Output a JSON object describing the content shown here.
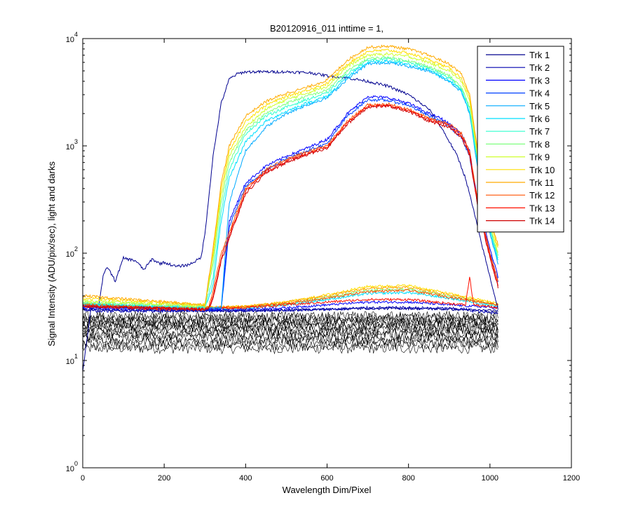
{
  "chart_data": {
    "type": "line",
    "title": "B20120916_011 inttime = 1,",
    "xlabel": "Wavelength Dim/Pixel",
    "ylabel": "Signal Intensity (ADU/pix/sec), light and darks",
    "xlim": [
      0,
      1200
    ],
    "ylim": [
      1,
      10000
    ],
    "yscale": "log",
    "grid": false,
    "legend_position": "top-right",
    "x_ticks": [
      0,
      200,
      400,
      600,
      800,
      1000,
      1200
    ],
    "x_tick_labels": [
      "0",
      "200",
      "400",
      "600",
      "800",
      "1000",
      "1200"
    ],
    "y_ticks": [
      1,
      10,
      100,
      1000,
      10000
    ],
    "y_tick_base": "10",
    "y_tick_exponents": [
      "0",
      "1",
      "2",
      "3",
      "4"
    ],
    "series": [
      {
        "name": "Trk 1",
        "color": "#00008F",
        "x": [
          0,
          20,
          40,
          50,
          60,
          80,
          100,
          130,
          150,
          170,
          190,
          200,
          230,
          260,
          290,
          300,
          320,
          340,
          360,
          380,
          400,
          500,
          560,
          600,
          650,
          700,
          750,
          800,
          850,
          880,
          900,
          920,
          940,
          960,
          980,
          1000,
          1020
        ],
        "y": [
          8,
          30,
          34,
          60,
          75,
          55,
          90,
          85,
          70,
          88,
          80,
          82,
          75,
          78,
          90,
          150,
          800,
          2500,
          4200,
          4700,
          4900,
          4900,
          4800,
          4500,
          4300,
          4000,
          3600,
          3000,
          2200,
          1500,
          1100,
          800,
          500,
          250,
          120,
          60,
          30
        ]
      },
      {
        "name": "Trk 2",
        "color": "#0000AF",
        "x": [
          0,
          20,
          100,
          300,
          500,
          600,
          700,
          800,
          900,
          940,
          960,
          1000,
          1020
        ],
        "y": [
          30,
          29,
          29,
          29,
          29.5,
          30,
          31,
          31,
          30.5,
          30,
          29,
          28,
          28
        ]
      },
      {
        "name": "Trk 3",
        "color": "#0000FF",
        "x": [
          0,
          300,
          340,
          350,
          360,
          400,
          450,
          500,
          550,
          600,
          650,
          700,
          750,
          800,
          850,
          880,
          900,
          930,
          950,
          970,
          1000,
          1020
        ],
        "y": [
          32,
          30,
          30,
          80,
          200,
          450,
          650,
          800,
          950,
          1150,
          2000,
          2900,
          2800,
          2500,
          2000,
          1800,
          1600,
          1300,
          900,
          300,
          110,
          60
        ]
      },
      {
        "name": "Trk 4",
        "color": "#0040FF",
        "x": [
          0,
          300,
          340,
          350,
          360,
          400,
          450,
          500,
          550,
          600,
          650,
          700,
          750,
          800,
          850,
          880,
          900,
          930,
          950,
          970,
          1000,
          1020
        ],
        "y": [
          32,
          30,
          30,
          70,
          180,
          420,
          600,
          760,
          900,
          1050,
          1900,
          2700,
          2650,
          2400,
          1900,
          1700,
          1500,
          1200,
          800,
          280,
          100,
          55
        ]
      },
      {
        "name": "Trk 5",
        "color": "#00AAFF",
        "x": [
          0,
          300,
          340,
          350,
          360,
          400,
          450,
          500,
          550,
          600,
          650,
          700,
          750,
          800,
          850,
          900,
          930,
          950,
          970,
          1000,
          1020
        ],
        "y": [
          33,
          31,
          31,
          100,
          300,
          900,
          1500,
          2000,
          2400,
          2800,
          4200,
          5800,
          6000,
          5500,
          5000,
          4000,
          3200,
          2000,
          600,
          150,
          80
        ]
      },
      {
        "name": "Trk 6",
        "color": "#00DFFF",
        "x": [
          0,
          300,
          320,
          340,
          360,
          400,
          450,
          500,
          550,
          600,
          650,
          700,
          750,
          800,
          850,
          900,
          930,
          950,
          970,
          1000,
          1020
        ],
        "y": [
          33,
          31,
          50,
          200,
          500,
          1100,
          1700,
          2100,
          2500,
          2900,
          4400,
          6000,
          6200,
          5700,
          5100,
          4100,
          3300,
          2100,
          650,
          160,
          85
        ]
      },
      {
        "name": "Trk 7",
        "color": "#30FFCF",
        "x": [
          0,
          300,
          320,
          340,
          360,
          400,
          450,
          500,
          550,
          600,
          650,
          700,
          750,
          800,
          850,
          900,
          930,
          950,
          970,
          1000,
          1020
        ],
        "y": [
          34,
          31,
          60,
          250,
          600,
          1300,
          1900,
          2300,
          2700,
          3100,
          4700,
          6300,
          6500,
          6000,
          5300,
          4300,
          3400,
          2200,
          700,
          170,
          90
        ]
      },
      {
        "name": "Trk 8",
        "color": "#80FF80",
        "x": [
          0,
          300,
          320,
          340,
          360,
          400,
          450,
          500,
          550,
          600,
          650,
          700,
          750,
          800,
          850,
          900,
          930,
          950,
          970,
          1000,
          1020
        ],
        "y": [
          35,
          32,
          80,
          300,
          700,
          1400,
          2000,
          2500,
          2900,
          3300,
          5000,
          6500,
          6700,
          6200,
          5500,
          4500,
          3500,
          2300,
          750,
          180,
          95
        ]
      },
      {
        "name": "Trk 9",
        "color": "#CFFF30",
        "x": [
          0,
          300,
          320,
          340,
          360,
          400,
          450,
          500,
          550,
          600,
          650,
          700,
          750,
          800,
          850,
          900,
          930,
          950,
          970,
          1000,
          1020
        ],
        "y": [
          36,
          32,
          90,
          350,
          800,
          1500,
          2200,
          2700,
          3100,
          3600,
          5500,
          7000,
          7200,
          6800,
          6000,
          5000,
          4000,
          2600,
          800,
          190,
          100
        ]
      },
      {
        "name": "Trk 10",
        "color": "#FFDF00",
        "x": [
          0,
          300,
          320,
          340,
          360,
          400,
          450,
          500,
          550,
          600,
          650,
          700,
          750,
          800,
          850,
          900,
          930,
          950,
          970,
          1000,
          1020
        ],
        "y": [
          38,
          33,
          100,
          400,
          900,
          1700,
          2400,
          2900,
          3300,
          3800,
          5800,
          7600,
          7800,
          7300,
          6400,
          5300,
          4300,
          2800,
          850,
          200,
          110
        ]
      },
      {
        "name": "Trk 11",
        "color": "#FFAA00",
        "x": [
          0,
          300,
          320,
          340,
          360,
          400,
          450,
          500,
          550,
          600,
          650,
          700,
          750,
          800,
          850,
          900,
          930,
          950,
          970,
          1000,
          1020
        ],
        "y": [
          40,
          33,
          110,
          450,
          1000,
          1900,
          2600,
          3100,
          3500,
          4100,
          6300,
          8300,
          8500,
          8000,
          7000,
          5800,
          4700,
          3000,
          900,
          210,
          120
        ]
      },
      {
        "name": "Trk 12",
        "color": "#FF5000",
        "x": [
          0,
          300,
          310,
          320,
          340,
          400,
          450,
          500,
          550,
          600,
          650,
          700,
          750,
          800,
          850,
          900,
          930,
          950,
          970,
          1000,
          1020
        ],
        "y": [
          33,
          30,
          32,
          45,
          100,
          400,
          600,
          750,
          880,
          1000,
          1700,
          2400,
          2450,
          2200,
          1800,
          1600,
          1300,
          900,
          300,
          100,
          55
        ]
      },
      {
        "name": "Trk 13",
        "color": "#FF1000",
        "x": [
          0,
          300,
          310,
          320,
          340,
          400,
          450,
          500,
          550,
          600,
          650,
          700,
          750,
          800,
          850,
          900,
          930,
          950,
          970,
          1000,
          1020
        ],
        "y": [
          32,
          30,
          31,
          40,
          90,
          380,
          580,
          720,
          850,
          970,
          1650,
          2350,
          2400,
          2150,
          1750,
          1550,
          1250,
          850,
          280,
          95,
          50
        ]
      },
      {
        "name": "Trk 14",
        "color": "#CF0000",
        "x": [
          0,
          300,
          310,
          320,
          340,
          400,
          450,
          500,
          550,
          600,
          650,
          700,
          750,
          800,
          850,
          900,
          930,
          950,
          970,
          1000,
          1020
        ],
        "y": [
          32,
          30,
          31,
          38,
          85,
          360,
          560,
          700,
          830,
          950,
          1600,
          2300,
          2350,
          2100,
          1700,
          1500,
          1200,
          820,
          270,
          90,
          48
        ]
      }
    ],
    "light_low_series": [
      {
        "color": "#00008F",
        "x": [
          0,
          200,
          400,
          500,
          600,
          700,
          800,
          900,
          1020
        ],
        "y": [
          30,
          29,
          29,
          29.5,
          30,
          30.5,
          30.5,
          30,
          29
        ]
      },
      {
        "color": "#0000FF",
        "x": [
          0,
          200,
          400,
          500,
          600,
          700,
          800,
          900,
          1020
        ],
        "y": [
          31,
          29.5,
          30,
          31,
          33,
          35,
          35,
          33,
          31
        ]
      },
      {
        "color": "#00DFFF",
        "x": [
          0,
          200,
          400,
          500,
          600,
          700,
          800,
          900,
          1020
        ],
        "y": [
          32,
          30,
          31,
          33,
          37,
          42,
          43,
          38,
          32
        ]
      },
      {
        "color": "#80FF80",
        "x": [
          0,
          200,
          400,
          500,
          600,
          700,
          800,
          900,
          1020
        ],
        "y": [
          33,
          30,
          31.5,
          34,
          39,
          45,
          46,
          40,
          33
        ]
      },
      {
        "color": "#FFDF00",
        "x": [
          0,
          200,
          400,
          500,
          600,
          700,
          800,
          900,
          1020
        ],
        "y": [
          34,
          30.5,
          32,
          35,
          41,
          49,
          50,
          42,
          34
        ]
      },
      {
        "color": "#FFAA00",
        "x": [
          0,
          200,
          400,
          500,
          600,
          700,
          800,
          900,
          1020
        ],
        "y": [
          34,
          30.5,
          32,
          35,
          40,
          47,
          48,
          41,
          33
        ]
      },
      {
        "color": "#FF5000",
        "x": [
          0,
          200,
          400,
          500,
          600,
          700,
          800,
          900,
          1020
        ],
        "y": [
          33,
          30,
          31.5,
          34,
          38,
          44,
          45,
          39,
          33
        ]
      },
      {
        "color": "#FF1000",
        "x": [
          0,
          200,
          400,
          500,
          600,
          700,
          800,
          900,
          940,
          950,
          960,
          1020
        ],
        "y": [
          32,
          30,
          31,
          33,
          35,
          37,
          37,
          34,
          33,
          60,
          33,
          31
        ]
      }
    ],
    "dark_series": {
      "color": "#000000",
      "count": 14,
      "x_range": [
        0,
        1020
      ],
      "levels": [
        13,
        14,
        15,
        16,
        17,
        18,
        19,
        20,
        21,
        22,
        23,
        24,
        25,
        26
      ]
    }
  }
}
